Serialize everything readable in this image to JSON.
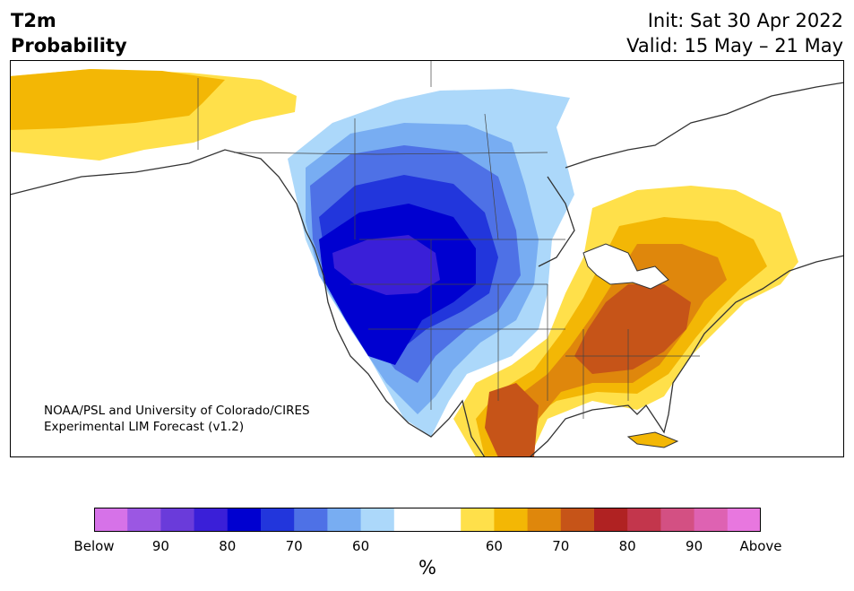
{
  "title": {
    "left_line1": "T2m",
    "left_line2": "Probability",
    "init": "Init: Sat 30 Apr 2022",
    "valid": "Valid: 15 May – 21 May"
  },
  "credit": {
    "line1": "NOAA/PSL and University of Colorado/CIRES",
    "line2": "Experimental LIM Forecast (v1.2)"
  },
  "colorbar": {
    "unit": "%",
    "colors": [
      "#d672e8",
      "#9b57e3",
      "#6a3bda",
      "#3a1fd8",
      "#0000d0",
      "#2236dc",
      "#4e71e6",
      "#78adf2",
      "#acd8fa",
      "#ffffff",
      "#ffffff",
      "#ffe04a",
      "#f3b705",
      "#df870c",
      "#c65418",
      "#b02222",
      "#c3364c",
      "#d35083",
      "#de62b2",
      "#e877df"
    ],
    "tick_labels": [
      "Below",
      "90",
      "80",
      "70",
      "60",
      "60",
      "70",
      "80",
      "90",
      "Above"
    ]
  },
  "map_colors": {
    "above_60": "#ffe04a",
    "above_60b": "#f3b705",
    "above_70": "#df870c",
    "above_70b": "#c65418",
    "below_60": "#acd8fa",
    "below_60b": "#78adf2",
    "below_70": "#4e71e6",
    "below_70b": "#2236dc",
    "below_80": "#0000d0",
    "below_80b": "#3a1fd8",
    "coast": "#333333"
  }
}
